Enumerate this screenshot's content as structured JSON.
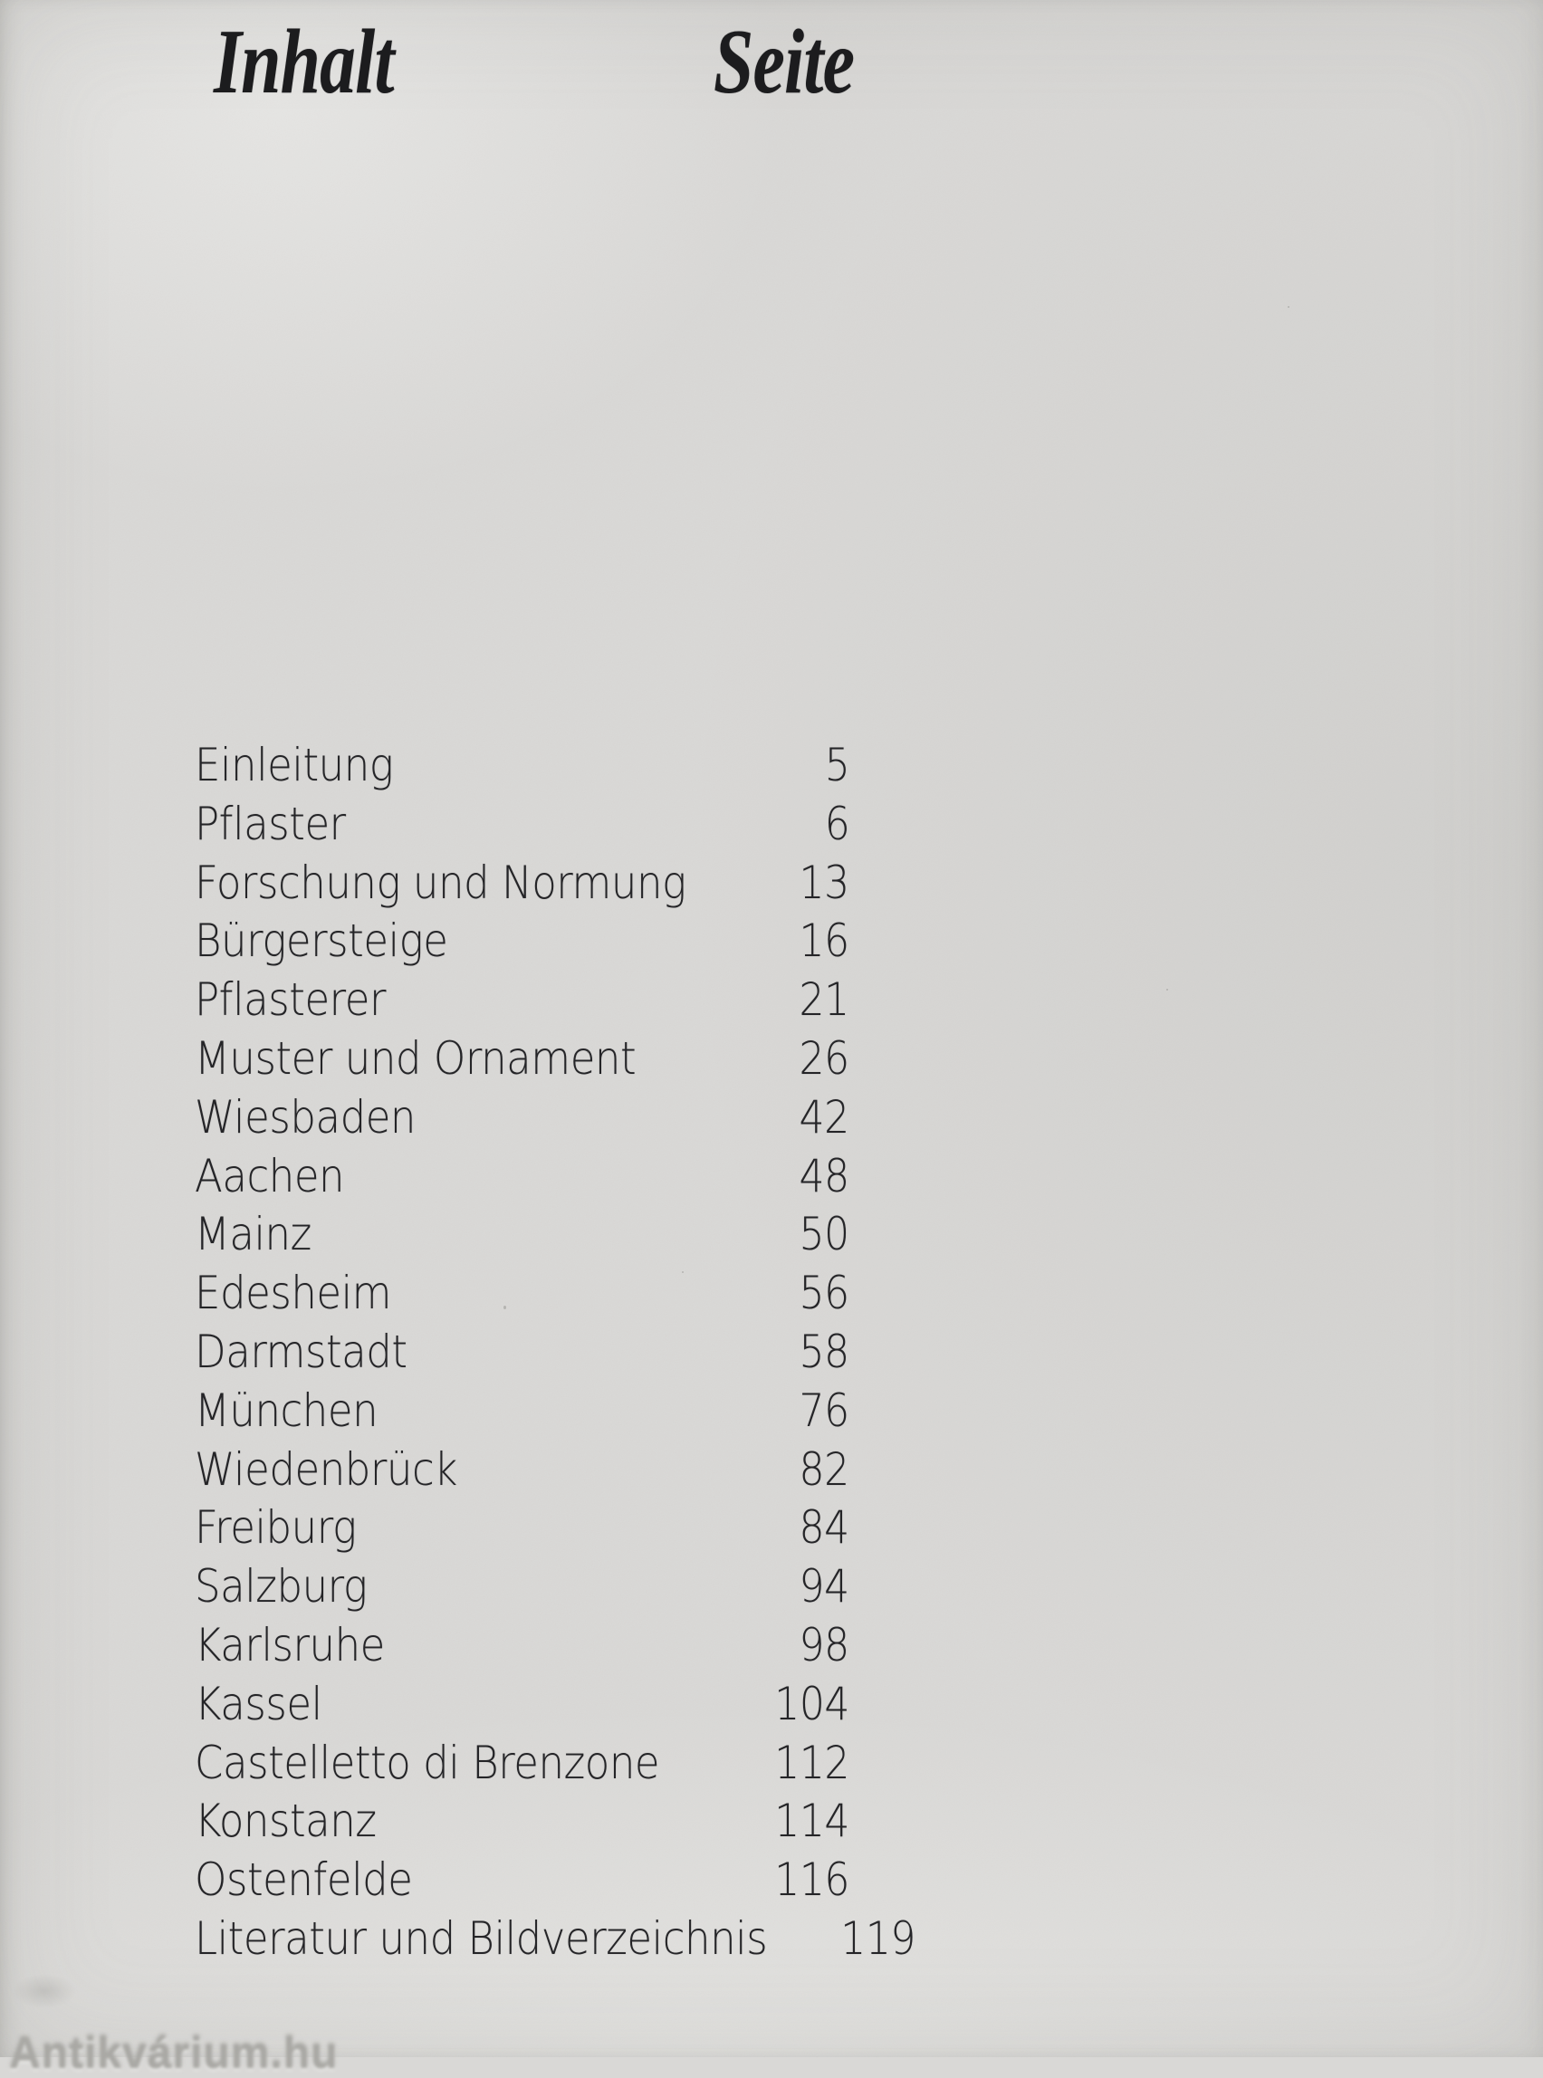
{
  "header": {
    "contents_label": "Inhalt",
    "page_label": "Seite"
  },
  "toc": {
    "entries": [
      {
        "title": "Einleitung",
        "page": "5"
      },
      {
        "title": "Pflaster",
        "page": "6"
      },
      {
        "title": "Forschung und Normung",
        "page": "13"
      },
      {
        "title": "Bürgersteige",
        "page": "16"
      },
      {
        "title": "Pflasterer",
        "page": "21"
      },
      {
        "title": "Muster und Ornament",
        "page": "26"
      },
      {
        "title": "Wiesbaden",
        "page": "42"
      },
      {
        "title": "Aachen",
        "page": "48"
      },
      {
        "title": "Mainz",
        "page": "50"
      },
      {
        "title": "Edesheim",
        "page": "56"
      },
      {
        "title": "Darmstadt",
        "page": "58"
      },
      {
        "title": "München",
        "page": "76"
      },
      {
        "title": "Wiedenbrück",
        "page": "82"
      },
      {
        "title": "Freiburg",
        "page": "84"
      },
      {
        "title": "Salzburg",
        "page": "94"
      },
      {
        "title": "Karlsruhe",
        "page": "98"
      },
      {
        "title": "Kassel",
        "page": "104"
      },
      {
        "title": "Castelletto di Brenzone",
        "page": "112"
      },
      {
        "title": "Konstanz",
        "page": "114"
      },
      {
        "title": "Ostenfelde",
        "page": "116"
      },
      {
        "title": "Literatur und Bildverzeichnis",
        "page": "119"
      }
    ]
  },
  "watermark": {
    "text": "Antikvárium.hu"
  },
  "colors": {
    "paper": "#d9d8d6",
    "ink": "#242427",
    "watermark_gray": "#a9a8a4"
  }
}
